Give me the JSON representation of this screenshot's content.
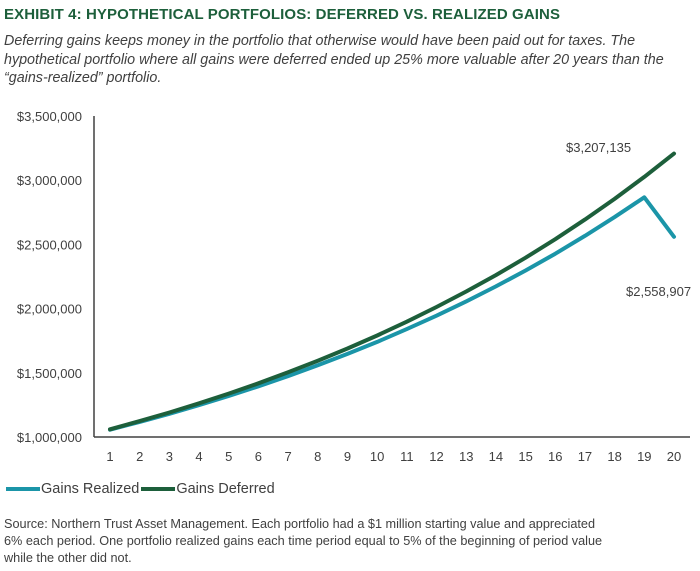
{
  "title": "EXHIBIT 4: HYPOTHETICAL PORTFOLIOS: DEFERRED VS. REALIZED GAINS",
  "subtitle": "Deferring gains keeps money in the portfolio that otherwise would have been paid out for taxes. The hypothetical portfolio where all gains were deferred ended up 25% more valuable after 20 years than the “gains-realized” portfolio.",
  "source_lines": [
    "Source: Northern Trust Asset Management. Each portfolio had a $1 million starting value and appreciated",
    "6% each period. One portfolio realized gains each time period equal to 5% of the beginning of period value",
    "while the other did not."
  ],
  "chart_data": {
    "type": "line",
    "x": [
      1,
      2,
      3,
      4,
      5,
      6,
      7,
      8,
      9,
      10,
      11,
      12,
      13,
      14,
      15,
      16,
      17,
      18,
      19,
      20
    ],
    "ylim": [
      1000000,
      3500000
    ],
    "yticks": [
      1000000,
      1500000,
      2000000,
      2500000,
      3000000,
      3500000
    ],
    "ytick_labels": [
      "$1,000,000",
      "$1,500,000",
      "$2,000,000",
      "$2,500,000",
      "$3,000,000",
      "$3,500,000"
    ],
    "grid": false,
    "legend_position": "bottom-left",
    "series": [
      {
        "name": "Gains Realized",
        "color": "#1b95a8",
        "values": [
          1057000,
          1117249,
          1180932,
          1248245,
          1319395,
          1394601,
          1474093,
          1558116,
          1646929,
          1740804,
          1840030,
          1944912,
          2055772,
          2172951,
          2296809,
          2427727,
          2566108,
          2712376,
          2866982,
          2558907
        ]
      },
      {
        "name": "Gains Deferred",
        "color": "#1d5f3b",
        "values": [
          1060000,
          1123600,
          1191016,
          1262477,
          1338226,
          1418519,
          1503630,
          1593848,
          1689479,
          1790848,
          1898299,
          2012196,
          2132928,
          2260904,
          2396558,
          2540352,
          2692773,
          2854339,
          3025600,
          3207135
        ]
      }
    ],
    "annotations": [
      {
        "text": "$3,207,135",
        "series": "Gains Deferred",
        "x": 20
      },
      {
        "text": "$2,558,907",
        "series": "Gains Realized",
        "x": 20
      }
    ]
  }
}
